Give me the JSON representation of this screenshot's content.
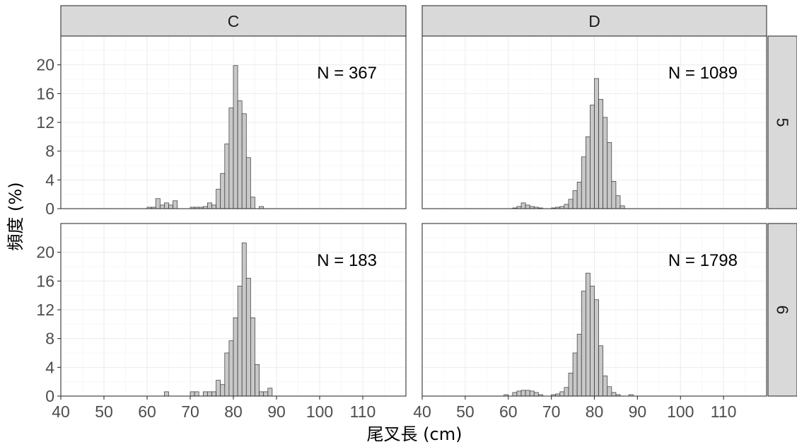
{
  "chart_data": {
    "type": "bar",
    "xlabel": "尾叉長 (cm)",
    "ylabel": "頻度 (%)",
    "xlim": [
      40,
      120
    ],
    "ylim": [
      0,
      24
    ],
    "xticks": [
      "40",
      "50",
      "60",
      "70",
      "80",
      "90",
      "100",
      "110"
    ],
    "yticks": [
      "0",
      "4",
      "8",
      "12",
      "16",
      "20"
    ],
    "bin_width": 1,
    "columns": [
      "C",
      "D"
    ],
    "rows": [
      "5",
      "6"
    ],
    "grid": true,
    "bar_color": "#c8c8c8",
    "outline_color": "#333333",
    "strip_color": "#d9d9d9",
    "panels": [
      {
        "column": "C",
        "row": "5",
        "n_label": "N = 367",
        "x": [
          60,
          61,
          62,
          63,
          64,
          65,
          66,
          70,
          71,
          72,
          73,
          74,
          75,
          76,
          77,
          78,
          79,
          80,
          81,
          82,
          83,
          84,
          86
        ],
        "y": [
          0.2,
          0.2,
          1.4,
          0.5,
          0.8,
          0.5,
          1.1,
          0.2,
          0.2,
          0.2,
          0.3,
          0.8,
          0.5,
          2.7,
          4.9,
          9.0,
          14.0,
          19.9,
          15.0,
          13.2,
          7.1,
          1.6,
          0.3
        ]
      },
      {
        "column": "D",
        "row": "5",
        "n_label": "N = 1089",
        "x": [
          61,
          62,
          63,
          64,
          65,
          66,
          67,
          70,
          71,
          72,
          73,
          74,
          75,
          76,
          77,
          78,
          79,
          80,
          81,
          82,
          83,
          84,
          85,
          86
        ],
        "y": [
          0.1,
          0.3,
          0.8,
          0.5,
          0.3,
          0.2,
          0.1,
          0.1,
          0.2,
          0.3,
          0.6,
          1.3,
          2.5,
          3.7,
          7.2,
          10.0,
          14.4,
          18.1,
          15.2,
          12.7,
          9.2,
          3.8,
          1.8,
          0.4
        ]
      },
      {
        "column": "C",
        "row": "6",
        "n_label": "N = 183",
        "x": [
          64,
          70,
          71,
          73,
          74,
          75,
          76,
          77,
          78,
          79,
          80,
          81,
          82,
          83,
          84,
          85,
          86,
          87,
          88
        ],
        "y": [
          0.6,
          0.6,
          0.6,
          0.6,
          0.6,
          0.6,
          2.2,
          1.6,
          6.0,
          7.7,
          10.9,
          15.3,
          21.3,
          16.4,
          10.9,
          4.4,
          0.6,
          0.6,
          1.1
        ]
      },
      {
        "column": "D",
        "row": "6",
        "n_label": "N = 1798",
        "x": [
          59,
          61,
          62,
          63,
          64,
          65,
          66,
          67,
          70,
          71,
          72,
          73,
          74,
          75,
          76,
          77,
          78,
          79,
          80,
          81,
          82,
          83,
          84,
          85,
          88
        ],
        "y": [
          0.2,
          0.5,
          0.7,
          0.8,
          0.8,
          0.7,
          0.5,
          0.2,
          0.2,
          0.3,
          0.6,
          1.2,
          3.2,
          6.0,
          8.6,
          14.6,
          17.1,
          15.3,
          13.4,
          7.0,
          2.8,
          1.3,
          0.5,
          0.2,
          0.2
        ]
      }
    ]
  }
}
